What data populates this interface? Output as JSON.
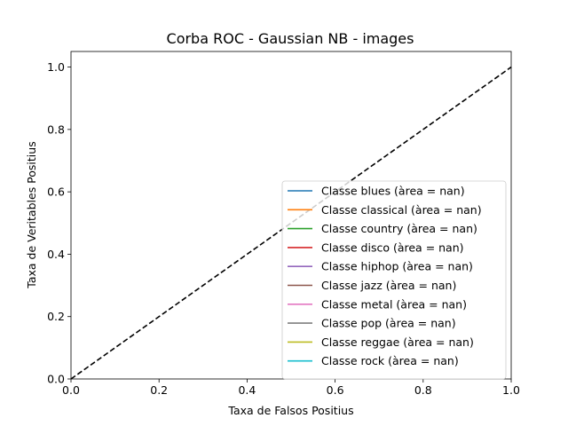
{
  "chart_data": {
    "type": "line",
    "title": "Corba ROC - Gaussian NB - images",
    "xlabel": "Taxa de Falsos Positius",
    "ylabel": "Taxa de Veritables Positius",
    "xlim": [
      0.0,
      1.0
    ],
    "ylim": [
      0.0,
      1.05
    ],
    "x_ticks": [
      "0.0",
      "0.2",
      "0.4",
      "0.6",
      "0.8",
      "1.0"
    ],
    "y_ticks": [
      "0.0",
      "0.2",
      "0.4",
      "0.6",
      "0.8",
      "1.0"
    ],
    "grid": false,
    "legend_position": "lower-right",
    "reference_line": {
      "x": [
        0.0,
        1.0
      ],
      "y": [
        0.0,
        1.0
      ],
      "style": "dashed",
      "color": "#000000"
    },
    "series": [
      {
        "name": "Classe blues (àrea = nan)",
        "color": "#1f77b4",
        "x": [],
        "y": []
      },
      {
        "name": "Classe classical (àrea = nan)",
        "color": "#ff7f0e",
        "x": [],
        "y": []
      },
      {
        "name": "Classe country (àrea = nan)",
        "color": "#2ca02c",
        "x": [],
        "y": []
      },
      {
        "name": "Classe disco (àrea = nan)",
        "color": "#d62728",
        "x": [],
        "y": []
      },
      {
        "name": "Classe hiphop (àrea = nan)",
        "color": "#9467bd",
        "x": [],
        "y": []
      },
      {
        "name": "Classe jazz (àrea = nan)",
        "color": "#8c564b",
        "x": [],
        "y": []
      },
      {
        "name": "Classe metal (àrea = nan)",
        "color": "#e377c2",
        "x": [],
        "y": []
      },
      {
        "name": "Classe pop (àrea = nan)",
        "color": "#7f7f7f",
        "x": [],
        "y": []
      },
      {
        "name": "Classe reggae (àrea = nan)",
        "color": "#bcbd22",
        "x": [],
        "y": []
      },
      {
        "name": "Classe rock (àrea = nan)",
        "color": "#17becf",
        "x": [],
        "y": []
      }
    ]
  }
}
